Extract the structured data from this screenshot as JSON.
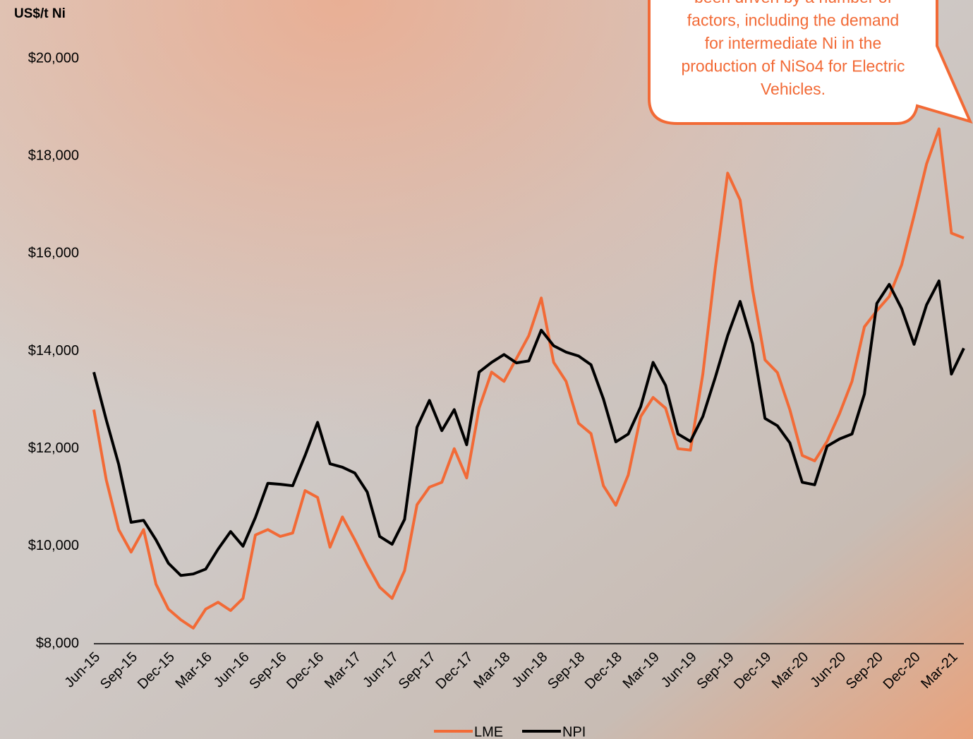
{
  "chart_data": {
    "type": "line",
    "y_label": "US$/t Ni",
    "annotation": [
      "been driven by a number of",
      "factors, including the demand",
      "for intermediate Ni in the",
      "production of NiSo4 for Electric",
      "Vehicles."
    ],
    "categories": [
      "Jun-15",
      null,
      null,
      "Sep-15",
      null,
      null,
      "Dec-15",
      null,
      null,
      "Mar-16",
      null,
      null,
      "Jun-16",
      null,
      null,
      "Sep-16",
      null,
      null,
      "Dec-16",
      null,
      null,
      "Mar-17",
      null,
      null,
      "Jun-17",
      null,
      null,
      "Sep-17",
      null,
      null,
      "Dec-17",
      null,
      null,
      "Mar-18",
      null,
      null,
      "Jun-18",
      null,
      null,
      "Sep-18",
      null,
      null,
      "Dec-18",
      null,
      null,
      "Mar-19",
      null,
      null,
      "Jun-19",
      null,
      null,
      "Sep-19",
      null,
      null,
      "Dec-19",
      null,
      null,
      "Mar-20",
      null,
      null,
      "Jun-20",
      null,
      null,
      "Sep-20",
      null,
      null,
      "Dec-20",
      null,
      null,
      "Mar-21",
      null
    ],
    "series": [
      {
        "name": "LME",
        "color": "#f26a36",
        "values": [
          12800,
          11360,
          10340,
          9880,
          10340,
          9220,
          8710,
          8490,
          8320,
          8710,
          8850,
          8680,
          8930,
          10230,
          10340,
          10200,
          10270,
          11140,
          11000,
          9980,
          10600,
          10130,
          9620,
          9160,
          8930,
          9500,
          10850,
          11210,
          11310,
          12000,
          11400,
          12830,
          13570,
          13380,
          13850,
          14320,
          15090,
          13770,
          13380,
          12520,
          12310,
          11240,
          10840,
          11460,
          12660,
          13050,
          12830,
          12000,
          11970,
          13530,
          15700,
          17650,
          17100,
          15260,
          13820,
          13560,
          12800,
          11860,
          11750,
          12150,
          12720,
          13380,
          14500,
          14830,
          15120,
          15770,
          16780,
          17840,
          18560,
          16420,
          16320
        ]
      },
      {
        "name": "NPI",
        "color": "#000000",
        "values": [
          13570,
          12590,
          11680,
          10490,
          10530,
          10130,
          9650,
          9400,
          9430,
          9530,
          9940,
          10300,
          10000,
          10590,
          11290,
          11270,
          11240,
          11860,
          12540,
          11690,
          11620,
          11500,
          11110,
          10200,
          10040,
          10550,
          12440,
          12990,
          12370,
          12800,
          12080,
          13570,
          13770,
          13930,
          13760,
          13800,
          14430,
          14110,
          13980,
          13900,
          13720,
          13020,
          12140,
          12300,
          12860,
          13770,
          13300,
          12300,
          12150,
          12660,
          13460,
          14320,
          15020,
          14150,
          12620,
          12470,
          12120,
          11310,
          11260,
          12050,
          12200,
          12300,
          13120,
          14980,
          15370,
          14870,
          14140,
          14950,
          15440,
          13530,
          14060
        ]
      }
    ],
    "ylim": [
      8000,
      20000
    ],
    "yticks": [
      {
        "value": 8000,
        "label": "$8,000"
      },
      {
        "value": 10000,
        "label": "$10,000"
      },
      {
        "value": 12000,
        "label": "$12,000"
      },
      {
        "value": 14000,
        "label": "$14,000"
      },
      {
        "value": 16000,
        "label": "$16,000"
      },
      {
        "value": 18000,
        "label": "$18,000"
      },
      {
        "value": 20000,
        "label": "$20,000"
      }
    ],
    "grid": false,
    "legend": "bottom"
  }
}
